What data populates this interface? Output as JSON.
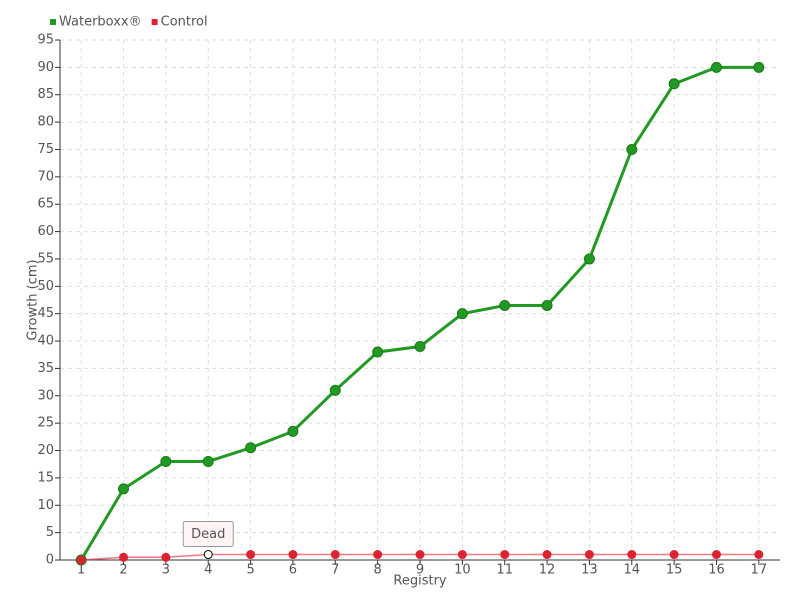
{
  "chart_data": {
    "type": "line",
    "x_label": "Registry",
    "y_label": "Growth (cm)",
    "categories": [
      "1",
      "2",
      "3",
      "4",
      "5",
      "6",
      "7",
      "8",
      "9",
      "10",
      "11",
      "12",
      "13",
      "14",
      "15",
      "16",
      "17"
    ],
    "series": [
      {
        "name": "Waterboxx®",
        "color": "#229922",
        "values": [
          0,
          13,
          18,
          18,
          20.5,
          23.5,
          31,
          38,
          39,
          45,
          46.5,
          46.5,
          55,
          75,
          87,
          90,
          90
        ]
      },
      {
        "name": "Control",
        "color": "#dd2233",
        "values": [
          0,
          0.5,
          0.5,
          1,
          1,
          1,
          1,
          1,
          1,
          1,
          1,
          1,
          1,
          1,
          1,
          1,
          1
        ]
      }
    ],
    "annotation": "Dead",
    "ylim": [
      0,
      95
    ],
    "yticks": [
      0,
      5,
      10,
      15,
      20,
      25,
      30,
      35,
      40,
      45,
      50,
      55,
      60,
      65,
      70,
      75,
      80,
      85,
      90,
      95
    ],
    "grid": true,
    "legend": "top-left"
  }
}
